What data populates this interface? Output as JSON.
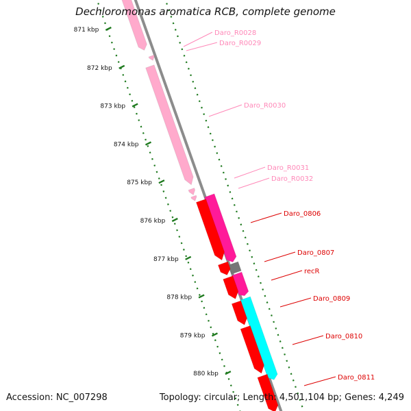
{
  "title": "Dechloromonas aromatica RCB, complete genome",
  "footer": {
    "accession": "Accession: NC_007298",
    "summary": "Topology: circular; Length: 4,501,104 bp; Genes: 4,249"
  },
  "colors": {
    "backbone": "#8c8c8c",
    "ticks": "#1f7a1f",
    "rna": "#ffaacc",
    "rna_label": "#ff88b8",
    "cds": "#ff0000",
    "cds_label": "#dd0000",
    "pink_gene": "#ff1a99",
    "cyan_gene": "#00ffff",
    "grey_gene": "#777777"
  },
  "scale": {
    "unit": "kbp",
    "labels": [
      "871 kbp",
      "872 kbp",
      "873 kbp",
      "874 kbp",
      "875 kbp",
      "876 kbp",
      "877 kbp",
      "878 kbp",
      "879 kbp",
      "880 kbp"
    ]
  },
  "features": [
    {
      "label": "Daro_R0028",
      "type": "rna"
    },
    {
      "label": "Daro_R0029",
      "type": "rna"
    },
    {
      "label": "Daro_R0030",
      "type": "rna"
    },
    {
      "label": "Daro_R0031",
      "type": "rna"
    },
    {
      "label": "Daro_R0032",
      "type": "rna"
    },
    {
      "label": "Daro_0806",
      "type": "cds"
    },
    {
      "label": "Daro_0807",
      "type": "cds"
    },
    {
      "label": "recR",
      "type": "cds"
    },
    {
      "label": "Daro_0809",
      "type": "cds"
    },
    {
      "label": "Daro_0810",
      "type": "cds"
    },
    {
      "label": "Daro_0811",
      "type": "cds"
    }
  ]
}
